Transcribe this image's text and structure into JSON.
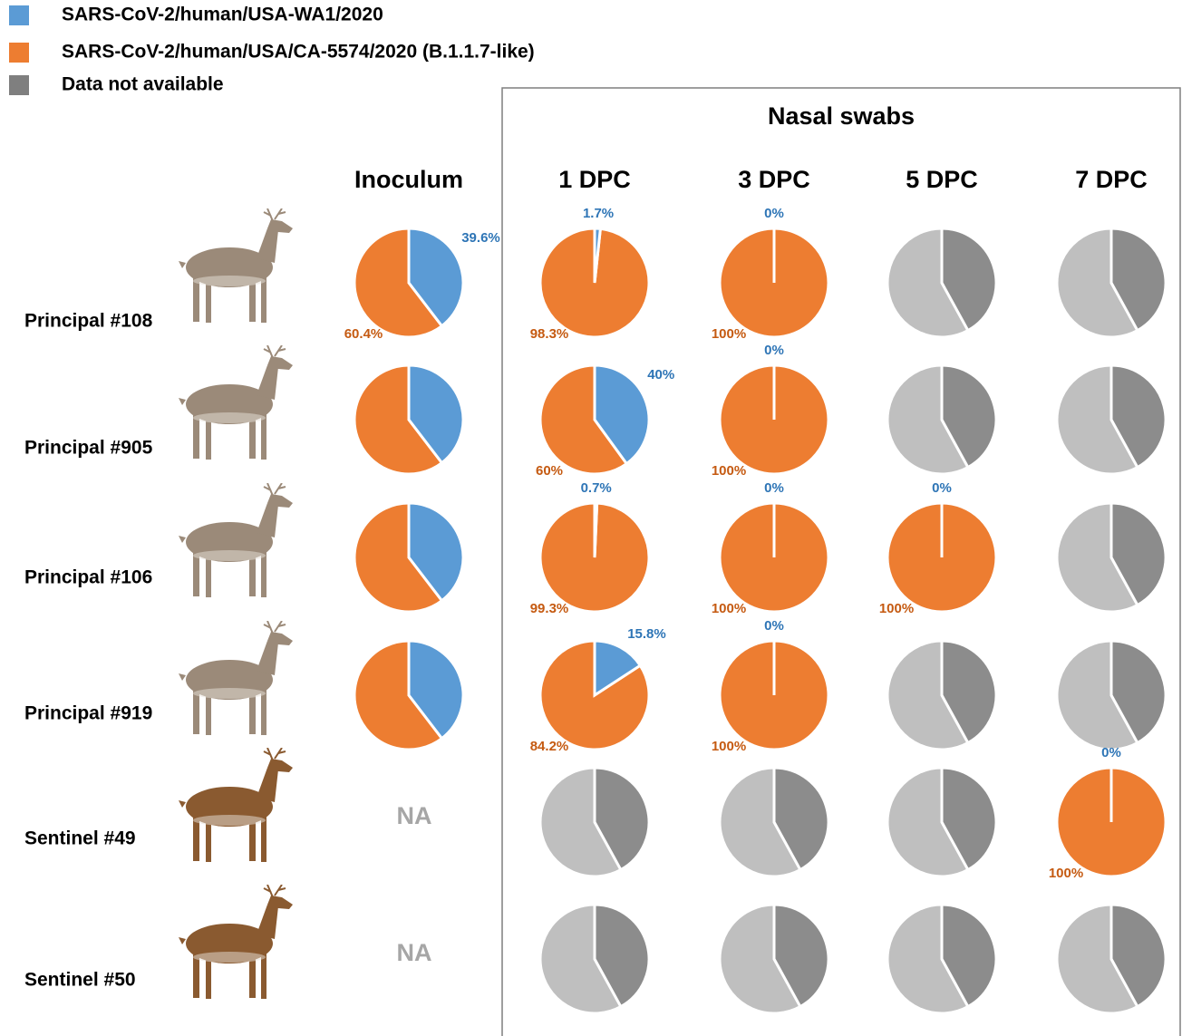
{
  "legend": [
    {
      "name": "SARS-CoV-2/human/USA-WA1/2020",
      "color": "#5b9bd5"
    },
    {
      "name": "SARS-CoV-2/human/USA/CA-5574/2020 (B.1.1.7-like)",
      "color": "#ed7d31"
    },
    {
      "name": "Data not available",
      "color": "#7f7f7f"
    }
  ],
  "panel_title": "Nasal swabs",
  "columns": [
    "Inoculum",
    "1 DPC",
    "3 DPC",
    "5 DPC",
    "7 DPC"
  ],
  "rows": [
    {
      "label": "Principal #108",
      "cells": [
        {
          "type": "pie",
          "values": [
            39.6,
            60.4
          ],
          "value_labels": [
            "39.6%",
            "60.4%"
          ]
        },
        {
          "type": "pie",
          "values": [
            1.7,
            98.3
          ],
          "value_labels": [
            "1.7%",
            "98.3%"
          ]
        },
        {
          "type": "pie",
          "values": [
            0,
            100
          ],
          "value_labels": [
            "0%",
            "100%"
          ]
        },
        {
          "type": "na_pie"
        },
        {
          "type": "na_pie"
        }
      ]
    },
    {
      "label": "Principal #905",
      "cells": [
        {
          "type": "pie",
          "values": [
            39.6,
            60.4
          ]
        },
        {
          "type": "pie",
          "values": [
            40,
            60
          ],
          "value_labels": [
            "40%",
            "60%"
          ]
        },
        {
          "type": "pie",
          "values": [
            0,
            100
          ],
          "value_labels": [
            "0%",
            "100%"
          ]
        },
        {
          "type": "na_pie"
        },
        {
          "type": "na_pie"
        }
      ]
    },
    {
      "label": "Principal #106",
      "cells": [
        {
          "type": "pie",
          "values": [
            39.6,
            60.4
          ]
        },
        {
          "type": "pie",
          "values": [
            0.7,
            99.3
          ],
          "value_labels": [
            "0.7%",
            "99.3%"
          ]
        },
        {
          "type": "pie",
          "values": [
            0,
            100
          ],
          "value_labels": [
            "0%",
            "100%"
          ]
        },
        {
          "type": "pie",
          "values": [
            0,
            100
          ],
          "value_labels": [
            "0%",
            "100%"
          ]
        },
        {
          "type": "na_pie"
        }
      ]
    },
    {
      "label": "Principal #919",
      "cells": [
        {
          "type": "pie",
          "values": [
            39.6,
            60.4
          ]
        },
        {
          "type": "pie",
          "values": [
            15.8,
            84.2
          ],
          "value_labels": [
            "15.8%",
            "84.2%"
          ]
        },
        {
          "type": "pie",
          "values": [
            0,
            100
          ],
          "value_labels": [
            "0%",
            "100%"
          ]
        },
        {
          "type": "na_pie"
        },
        {
          "type": "na_pie"
        }
      ]
    },
    {
      "label": "Sentinel #49",
      "cells": [
        {
          "type": "text",
          "text": "NA"
        },
        {
          "type": "na_pie"
        },
        {
          "type": "na_pie"
        },
        {
          "type": "na_pie"
        },
        {
          "type": "pie",
          "values": [
            0,
            100
          ],
          "value_labels": [
            "0%",
            "100%"
          ]
        }
      ]
    },
    {
      "label": "Sentinel #50",
      "cells": [
        {
          "type": "text",
          "text": "NA"
        },
        {
          "type": "na_pie"
        },
        {
          "type": "na_pie"
        },
        {
          "type": "na_pie"
        },
        {
          "type": "na_pie"
        }
      ]
    }
  ]
}
